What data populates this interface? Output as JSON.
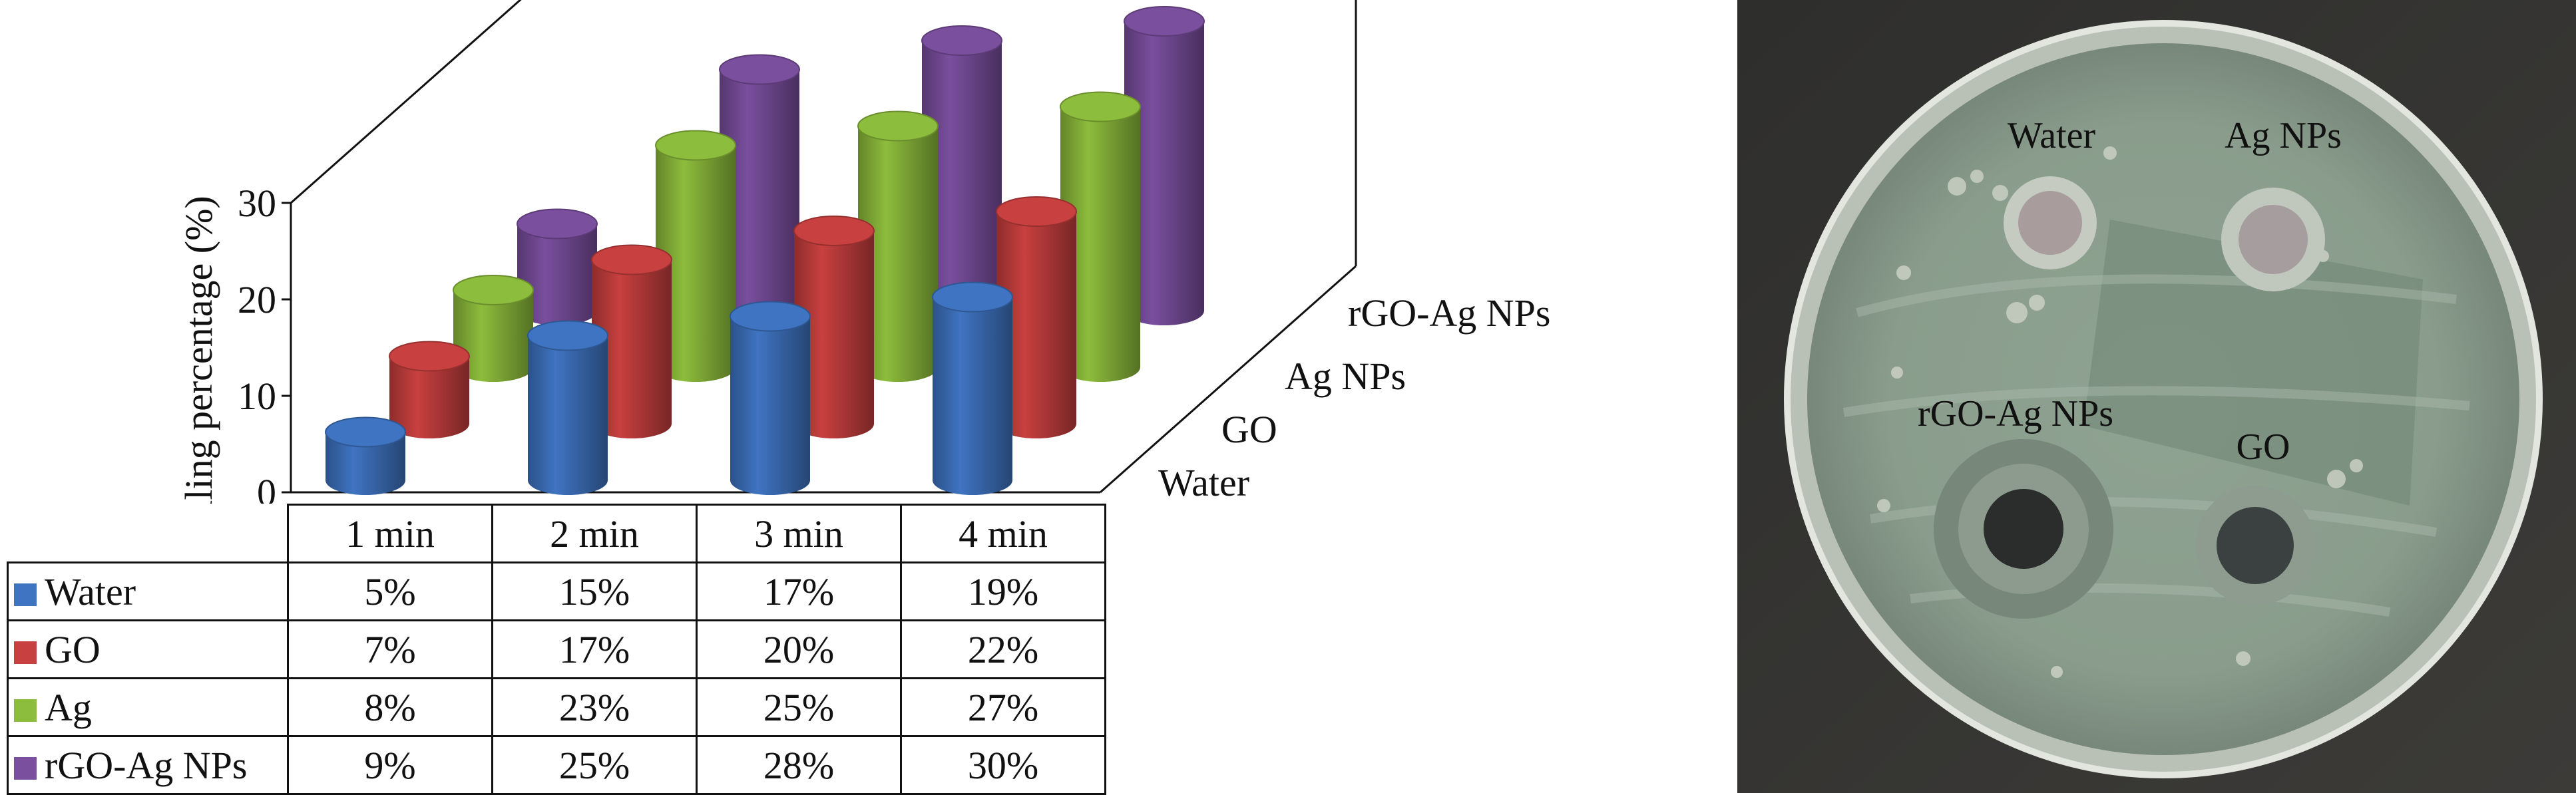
{
  "chart_data": {
    "type": "bar",
    "subtype": "3d-cylinder",
    "ylabel": "Killing percentage (%)",
    "yticks": [
      0,
      10,
      20,
      30
    ],
    "ylim": [
      0,
      30
    ],
    "categories": [
      "1 min",
      "2 min",
      "3 min",
      "4 min"
    ],
    "depth_labels": [
      "Water",
      "GO",
      "Ag NPs",
      "rGO-Ag NPs"
    ],
    "series": [
      {
        "name": "Water",
        "table_label": "Water",
        "color": "#3f74c2",
        "values": [
          5,
          15,
          17,
          19
        ],
        "labels": [
          "5%",
          "15%",
          "17%",
          "19%"
        ]
      },
      {
        "name": "GO",
        "table_label": "GO",
        "color": "#c8403f",
        "values": [
          7,
          17,
          20,
          22
        ],
        "labels": [
          "7%",
          "17%",
          "20%",
          "22%"
        ]
      },
      {
        "name": "Ag NPs",
        "table_label": "Ag",
        "color": "#8dbd3c",
        "values": [
          8,
          23,
          25,
          27
        ],
        "labels": [
          "8%",
          "23%",
          "25%",
          "27%"
        ]
      },
      {
        "name": "rGO-Ag NPs",
        "table_label": "rGO-Ag NPs",
        "color": "#7a4f9e",
        "values": [
          9,
          25,
          28,
          30
        ],
        "labels": [
          "9%",
          "25%",
          "28%",
          "30%"
        ]
      }
    ],
    "grid": false,
    "legend": "table-below"
  },
  "photo": {
    "labels": {
      "water": "Water",
      "ag": "Ag NPs",
      "rgo": "rGO-Ag NPs",
      "go": "GO"
    }
  }
}
